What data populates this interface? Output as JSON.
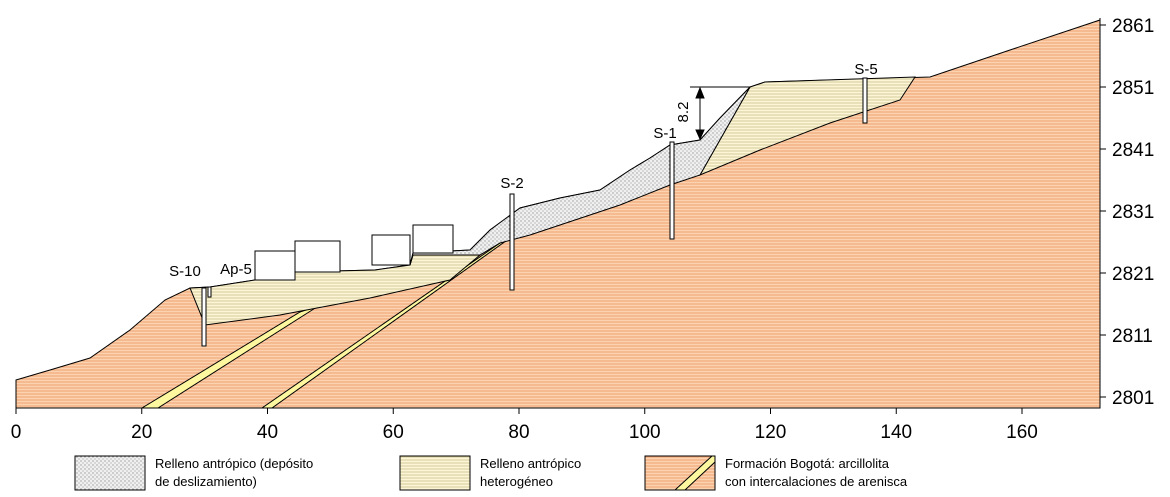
{
  "x_axis": {
    "ticks": [
      "0",
      "20",
      "40",
      "60",
      "80",
      "100",
      "120",
      "140",
      "160"
    ]
  },
  "y_axis": {
    "ticks": [
      "2801",
      "2811",
      "2821",
      "2831",
      "2841",
      "2851",
      "2861"
    ]
  },
  "boreholes": [
    "S-10",
    "Ap-5",
    "S-2",
    "S-1",
    "S-5"
  ],
  "dimension": "8.2",
  "legend": [
    {
      "lines": [
        "Relleno antrópico (depósito",
        "de deslizamiento)"
      ]
    },
    {
      "lines": [
        "Relleno antrópico",
        "heterogéneo"
      ]
    },
    {
      "lines": [
        "Formación Bogotá: arcillolita",
        "con intercalaciones de arenisca"
      ]
    }
  ]
}
